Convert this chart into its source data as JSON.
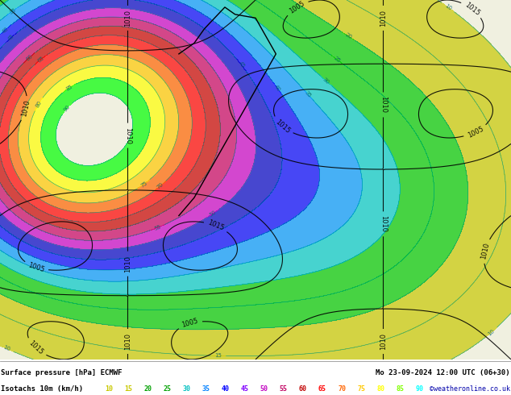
{
  "title_left": "Surface pressure [hPa] ECMWF",
  "title_right": "Mo 23-09-2024 12:00 UTC (06+30)",
  "legend_label": "Isotachs 10m (km/h)",
  "copyright": "©weatheronline.co.uk",
  "isotach_values": [
    10,
    15,
    20,
    25,
    30,
    35,
    40,
    45,
    50,
    55,
    60,
    65,
    70,
    75,
    80,
    85,
    90
  ],
  "isotach_colors": [
    "#c8c800",
    "#c8c800",
    "#00c800",
    "#00c800",
    "#00c8c8",
    "#0096ff",
    "#0000ff",
    "#0000c8",
    "#c800c8",
    "#c80064",
    "#c80000",
    "#ff0000",
    "#ff6400",
    "#ffc800",
    "#ffff00",
    "#00ff00",
    "#00ffff"
  ],
  "bg_color": "#f0f0e0",
  "map_bg": "#e8f4e8",
  "bottom_bar_color": "#d0d0d0",
  "figsize": [
    6.34,
    4.9
  ],
  "dpi": 100,
  "bottom_text_color": "#000000",
  "bottom_bar_height": 0.09
}
